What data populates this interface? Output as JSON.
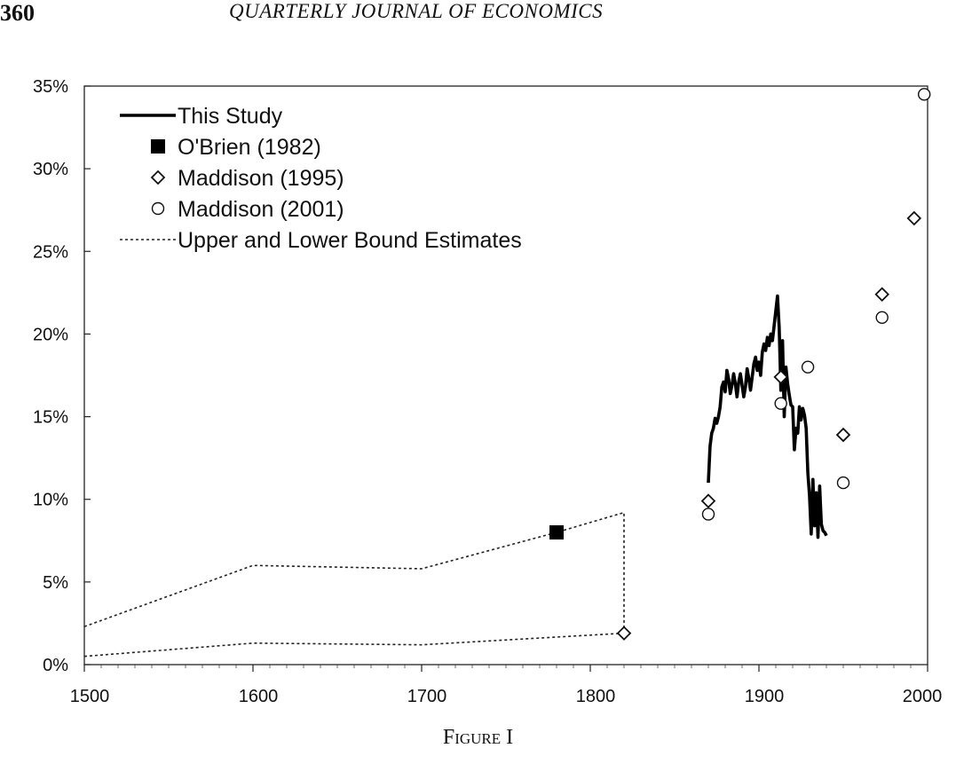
{
  "header": {
    "page_number": "360",
    "journal_title": "QUARTERLY JOURNAL OF ECONOMICS"
  },
  "caption": "Figure I",
  "chart_data": {
    "type": "line",
    "title": "",
    "xlabel": "",
    "ylabel": "",
    "xlim": [
      1500,
      2000
    ],
    "ylim": [
      0,
      35
    ],
    "x_ticks": [
      {
        "value": 1500,
        "label": "1500"
      },
      {
        "value": 1600,
        "label": "1600"
      },
      {
        "value": 1700,
        "label": "1700"
      },
      {
        "value": 1800,
        "label": "1800"
      },
      {
        "value": 1900,
        "label": "1900"
      },
      {
        "value": 2000,
        "label": "2000"
      }
    ],
    "y_ticks": [
      {
        "value": 0,
        "label": "0%"
      },
      {
        "value": 5,
        "label": "5%"
      },
      {
        "value": 10,
        "label": "10%"
      },
      {
        "value": 15,
        "label": "15%"
      },
      {
        "value": 20,
        "label": "20%"
      },
      {
        "value": 25,
        "label": "25%"
      },
      {
        "value": 30,
        "label": "30%"
      },
      {
        "value": 35,
        "label": "35%"
      }
    ],
    "grid": false,
    "legend_position": "top-left",
    "legend": [
      {
        "label": "This Study",
        "marker": "line"
      },
      {
        "label": "O'Brien (1982)",
        "marker": "filled-square"
      },
      {
        "label": "Maddison (1995)",
        "marker": "diamond"
      },
      {
        "label": "Maddison (2001)",
        "marker": "circle"
      },
      {
        "label": "Upper and Lower Bound Estimates",
        "marker": "dotted-line"
      }
    ],
    "series": [
      {
        "name": "This Study",
        "style": "solid-line",
        "points": [
          [
            1870,
            11.0
          ],
          [
            1871,
            13.2
          ],
          [
            1872,
            14.0
          ],
          [
            1873,
            14.3
          ],
          [
            1874,
            14.9
          ],
          [
            1875,
            14.6
          ],
          [
            1876,
            15.0
          ],
          [
            1877,
            15.6
          ],
          [
            1878,
            16.8
          ],
          [
            1879,
            17.1
          ],
          [
            1880,
            16.5
          ],
          [
            1881,
            17.8
          ],
          [
            1882,
            17.3
          ],
          [
            1883,
            16.4
          ],
          [
            1884,
            16.9
          ],
          [
            1885,
            17.6
          ],
          [
            1886,
            17.0
          ],
          [
            1887,
            16.2
          ],
          [
            1888,
            17.1
          ],
          [
            1889,
            17.6
          ],
          [
            1890,
            16.9
          ],
          [
            1891,
            16.2
          ],
          [
            1892,
            16.8
          ],
          [
            1893,
            17.9
          ],
          [
            1894,
            17.3
          ],
          [
            1895,
            16.6
          ],
          [
            1896,
            17.4
          ],
          [
            1897,
            18.2
          ],
          [
            1898,
            18.6
          ],
          [
            1899,
            17.8
          ],
          [
            1900,
            18.3
          ],
          [
            1901,
            17.5
          ],
          [
            1902,
            18.9
          ],
          [
            1903,
            19.4
          ],
          [
            1904,
            19.0
          ],
          [
            1905,
            19.8
          ],
          [
            1906,
            19.3
          ],
          [
            1907,
            20.0
          ],
          [
            1908,
            19.6
          ],
          [
            1909,
            20.5
          ],
          [
            1910,
            21.4
          ],
          [
            1911,
            22.3
          ],
          [
            1912,
            20.4
          ],
          [
            1913,
            16.6
          ],
          [
            1914,
            19.6
          ],
          [
            1915,
            15.0
          ],
          [
            1916,
            18.0
          ],
          [
            1917,
            17.0
          ],
          [
            1918,
            16.3
          ],
          [
            1919,
            15.7
          ],
          [
            1920,
            15.6
          ],
          [
            1921,
            13.0
          ],
          [
            1922,
            14.3
          ],
          [
            1923,
            14.0
          ],
          [
            1924,
            15.6
          ],
          [
            1925,
            14.8
          ],
          [
            1926,
            15.5
          ],
          [
            1927,
            15.1
          ],
          [
            1928,
            14.3
          ],
          [
            1929,
            11.6
          ],
          [
            1930,
            10.2
          ],
          [
            1931,
            7.9
          ],
          [
            1932,
            11.2
          ],
          [
            1933,
            8.4
          ],
          [
            1934,
            10.4
          ],
          [
            1935,
            7.7
          ],
          [
            1936,
            10.8
          ],
          [
            1937,
            8.5
          ],
          [
            1938,
            8.1
          ],
          [
            1939,
            8.0
          ],
          [
            1940,
            7.8
          ]
        ]
      },
      {
        "name": "O'Brien (1982)",
        "style": "filled-square",
        "points": [
          [
            1780,
            8.0
          ]
        ]
      },
      {
        "name": "Maddison (1995)",
        "style": "diamond",
        "points": [
          [
            1820,
            1.9
          ],
          [
            1870,
            9.9
          ],
          [
            1913,
            17.4
          ],
          [
            1950,
            13.9
          ],
          [
            1973,
            22.4
          ],
          [
            1992,
            27.0
          ]
        ]
      },
      {
        "name": "Maddison (2001)",
        "style": "circle",
        "points": [
          [
            1870,
            9.1
          ],
          [
            1913,
            15.8
          ],
          [
            1929,
            18.0
          ],
          [
            1950,
            11.0
          ],
          [
            1973,
            21.0
          ],
          [
            1998,
            34.5
          ]
        ]
      },
      {
        "name": "Upper and Lower Bound Estimates",
        "style": "dotted-line",
        "segments": [
          [
            [
              1500,
              2.3
            ],
            [
              1600,
              6.0
            ],
            [
              1700,
              5.8
            ],
            [
              1780,
              8.0
            ],
            [
              1820,
              9.2
            ],
            [
              1820,
              1.9
            ]
          ],
          [
            [
              1500,
              0.5
            ],
            [
              1600,
              1.3
            ],
            [
              1700,
              1.2
            ],
            [
              1820,
              1.9
            ]
          ]
        ]
      }
    ]
  }
}
